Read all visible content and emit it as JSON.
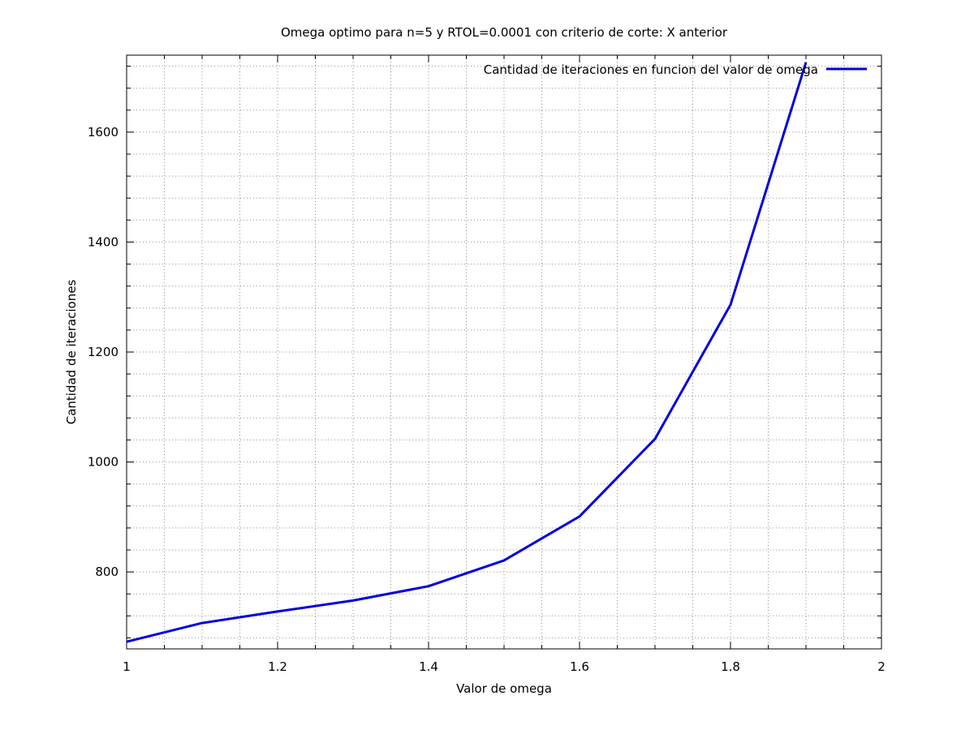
{
  "chart_data": {
    "type": "line",
    "title": "Omega optimo para n=5 y RTOL=0.0001 con criterio de corte: X anterior",
    "xlabel": "Valor de omega",
    "ylabel": "Cantidad de iteraciones",
    "xlim": [
      1,
      2
    ],
    "ylim": [
      660,
      1740
    ],
    "x_ticks": [
      1,
      1.2,
      1.4,
      1.6,
      1.8,
      2
    ],
    "x_tick_labels": [
      "1",
      "1.2",
      "1.4",
      "1.6",
      "1.8",
      "2"
    ],
    "y_ticks": [
      800,
      1000,
      1200,
      1400,
      1600
    ],
    "y_tick_labels": [
      "800",
      "1000",
      "1200",
      "1400",
      "1600"
    ],
    "grid": true,
    "legend_position": "top-right",
    "series": [
      {
        "name": "Cantidad de iteraciones en funcion del valor de omega",
        "color": "#0000e0",
        "x": [
          1.0,
          1.1,
          1.2,
          1.3,
          1.4,
          1.5,
          1.6,
          1.7,
          1.8,
          1.9
        ],
        "y": [
          673,
          707,
          728,
          748,
          774,
          821,
          901,
          1042,
          1286,
          1727
        ]
      }
    ]
  }
}
